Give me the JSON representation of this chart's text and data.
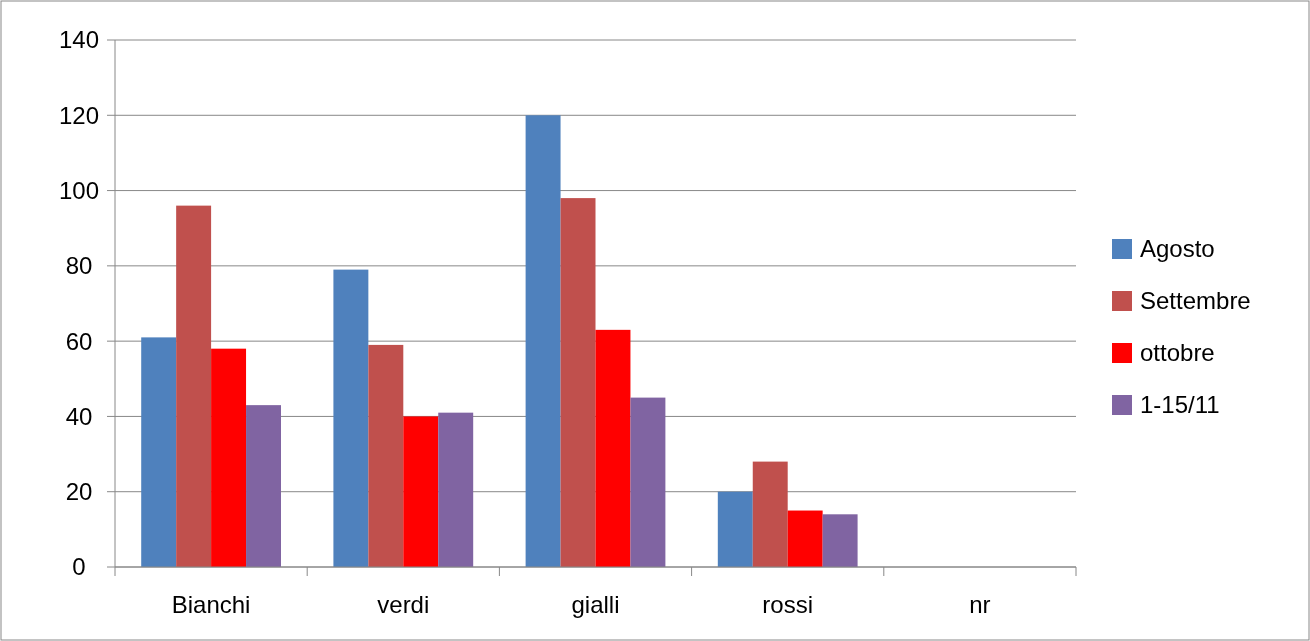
{
  "chart_data": {
    "type": "bar",
    "categories": [
      "Bianchi",
      "verdi",
      "gialli",
      "rossi",
      "nr"
    ],
    "series": [
      {
        "name": "Agosto",
        "color": "#4f81bd",
        "values": [
          61,
          79,
          120,
          20,
          0
        ]
      },
      {
        "name": "Settembre",
        "color": "#c0504d",
        "values": [
          96,
          59,
          98,
          28,
          0
        ]
      },
      {
        "name": "ottobre",
        "color": "#ff0000",
        "values": [
          58,
          40,
          63,
          15,
          0
        ]
      },
      {
        "name": "1-15/11",
        "color": "#8064a2",
        "values": [
          43,
          41,
          45,
          14,
          0
        ]
      }
    ],
    "ylim": [
      0,
      140
    ],
    "yticks": [
      0,
      20,
      40,
      60,
      80,
      100,
      120,
      140
    ],
    "grid": "y",
    "legend": "right"
  }
}
